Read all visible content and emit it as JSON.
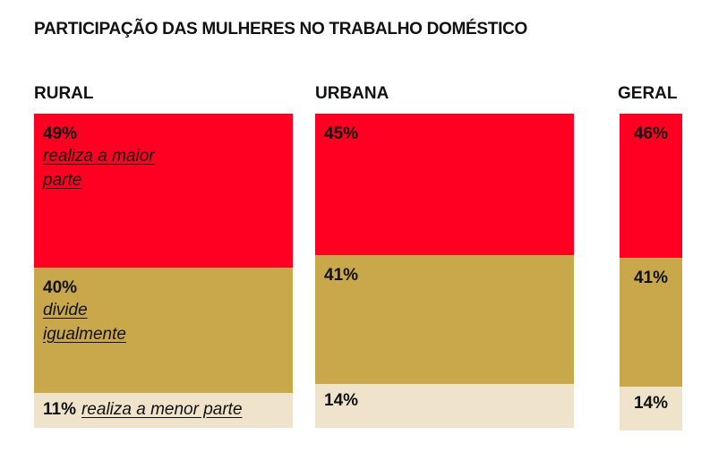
{
  "chart_data": {
    "type": "stacked-column",
    "title": "PARTICIPAÇÃO DAS MULHERES NO TRABALHO DOMÉSTICO",
    "categories": [
      "RURAL",
      "URBANA",
      "GERAL"
    ],
    "ylim": [
      0,
      100
    ],
    "series": [
      {
        "name": "realiza a maior parte",
        "color": "#ff0022",
        "values": [
          49,
          45,
          46
        ],
        "value_labels": [
          "49%",
          "45%",
          "46%"
        ]
      },
      {
        "name": "divide igualmente",
        "color": "#c9a84c",
        "values": [
          40,
          41,
          41
        ],
        "value_labels": [
          "40%",
          "41%",
          "41%"
        ]
      },
      {
        "name": "realiza a menor parte",
        "color": "#efe4cb",
        "values": [
          11,
          14,
          14
        ],
        "value_labels": [
          "11%",
          "14%",
          "14%"
        ]
      }
    ]
  }
}
